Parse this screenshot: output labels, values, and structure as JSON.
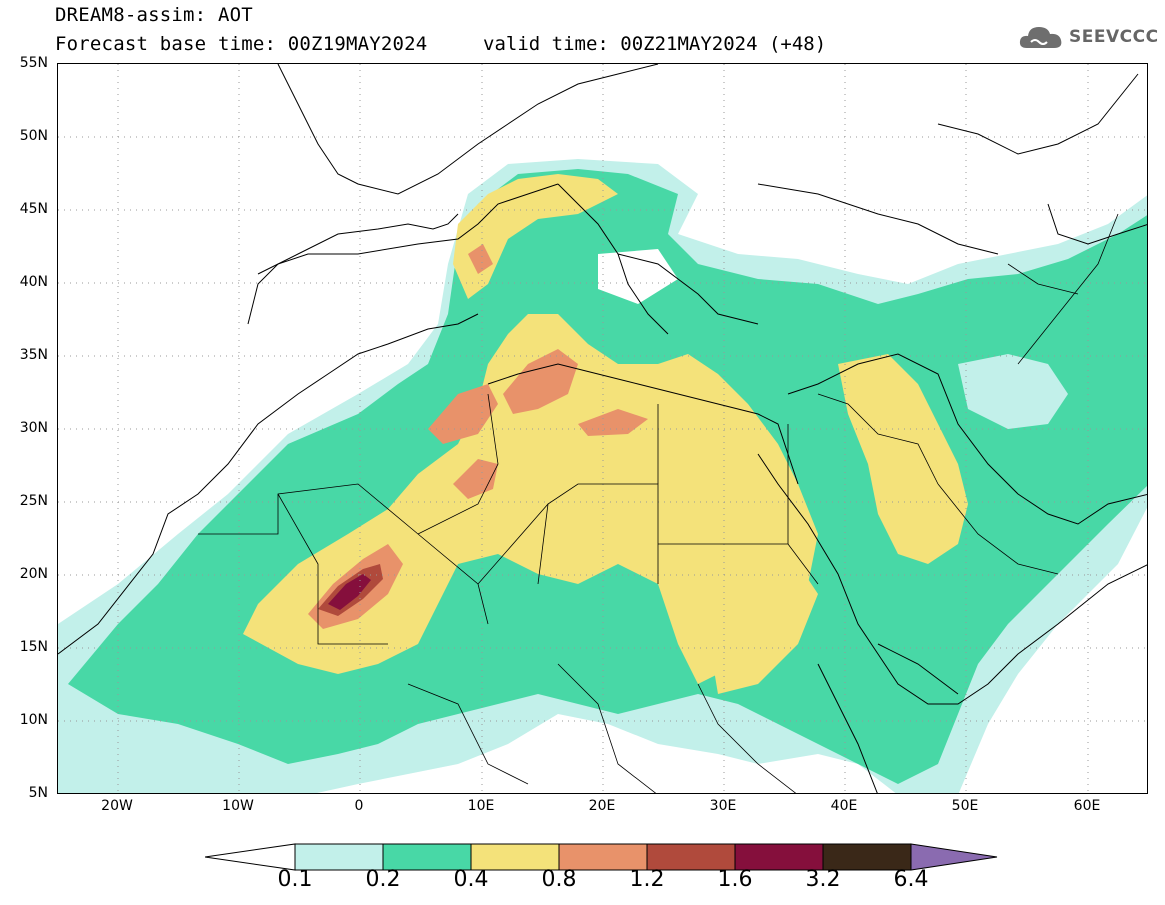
{
  "header": {
    "title": "DREAM8-assim: AOT",
    "base_time": "Forecast base time: 00Z19MAY2024",
    "valid_time": "valid time: 00Z21MAY2024 (+48)"
  },
  "logo": {
    "text": "SEEVCCC",
    "icon": "cloud-icon"
  },
  "map": {
    "lat_labels": [
      "55N",
      "50N",
      "45N",
      "40N",
      "35N",
      "30N",
      "25N",
      "20N",
      "15N",
      "10N",
      "5N"
    ],
    "lon_labels": [
      "20W",
      "10W",
      "0",
      "10E",
      "20E",
      "30E",
      "40E",
      "50E",
      "60E"
    ],
    "extent": {
      "lon_min": -25,
      "lon_max": 65,
      "lat_min": 5,
      "lat_max": 55
    }
  },
  "colorbar": {
    "levels": [
      "0.1",
      "0.2",
      "0.4",
      "0.8",
      "1.2",
      "1.6",
      "3.2",
      "6.4"
    ],
    "colors": [
      "#c2f0ea",
      "#48d8a6",
      "#f4e27a",
      "#e8926a",
      "#b04a3c",
      "#850f3c",
      "#3a2818",
      "#8a6bb0"
    ]
  }
}
